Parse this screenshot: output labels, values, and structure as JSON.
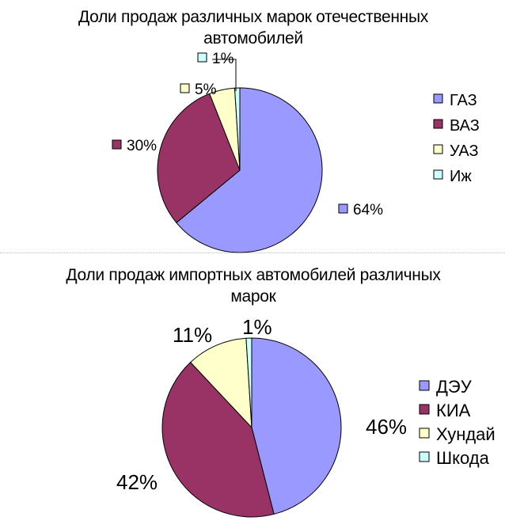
{
  "chart_data": [
    {
      "type": "pie",
      "title_lines": [
        "Доли продаж различных марок отечественных",
        "автомобилей"
      ],
      "categories": [
        "ГАЗ",
        "ВАЗ",
        "УАЗ",
        "Иж"
      ],
      "values": [
        64,
        30,
        5,
        1
      ],
      "data_labels": [
        "64%",
        "30%",
        "5%",
        "1%"
      ],
      "colors": [
        "#9999FF",
        "#993366",
        "#FFFFCC",
        "#CCFFFF"
      ],
      "legend_position": "right"
    },
    {
      "type": "pie",
      "title_lines": [
        "Доли продаж импортных автомобилей различных",
        "марок"
      ],
      "categories": [
        "ДЭУ",
        "КИА",
        "Хундай",
        "Шкода"
      ],
      "values": [
        46,
        42,
        11,
        1
      ],
      "data_labels": [
        "46%",
        "42%",
        "11%",
        "1%"
      ],
      "colors": [
        "#9999FF",
        "#993366",
        "#FFFFCC",
        "#CCFFFF"
      ],
      "legend_position": "right"
    }
  ]
}
